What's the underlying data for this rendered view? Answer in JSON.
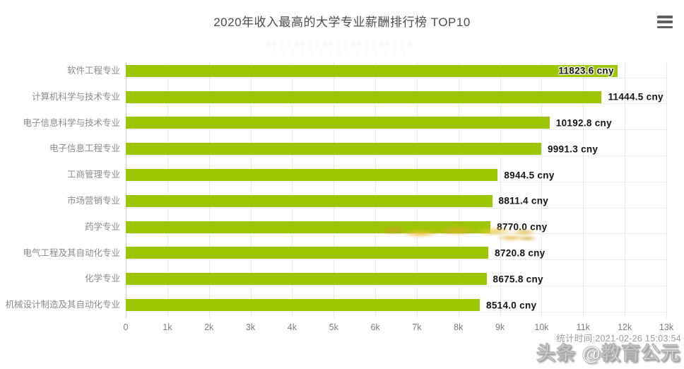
{
  "header": {
    "title": "2020年收入最高的大学专业薪酬排行榜 TOP10",
    "menu_icon": "hamburger-menu"
  },
  "chart_data": {
    "type": "bar",
    "orientation": "horizontal",
    "title": "2020年收入最高的大学专业薪酬排行榜 TOP10",
    "categories": [
      "软件工程专业",
      "计算机科学与技术专业",
      "电子信息科学与技术专业",
      "电子信息工程专业",
      "工商管理专业",
      "市场营销专业",
      "药学专业",
      "电气工程及其自动化专业",
      "化学专业",
      "机械设计制造及其自动化专业"
    ],
    "values": [
      11823.6,
      11444.5,
      10192.8,
      9991.3,
      8944.5,
      8811.4,
      8770.0,
      8720.8,
      8675.8,
      8514.0
    ],
    "value_labels": [
      "11823.6 cny",
      "11444.5 cny",
      "10192.8 cny",
      "9991.3 cny",
      "8944.5 cny",
      "8811.4 cny",
      "8770.0 cny",
      "8720.8 cny",
      "8675.8 cny",
      "8514.0 cny"
    ],
    "unit": "cny",
    "xlabel": "",
    "ylabel": "",
    "xlim": [
      0,
      13000
    ],
    "x_ticks": [
      "0",
      "1k",
      "2k",
      "3k",
      "4k",
      "5k",
      "6k",
      "7k",
      "8k",
      "9k",
      "10k",
      "11k",
      "12k",
      "13k"
    ],
    "grid": true,
    "legend_position": "none",
    "bar_color": "#9CC502",
    "label_inside_index": 0
  },
  "footer": {
    "stats_time": "统计时间:2021-02-26 15:03:54",
    "watermark": "头条 @教育公元"
  },
  "colors": {
    "bar": "#9CC502",
    "title_text": "#4c4c4c",
    "category_text": "#8b8b8b",
    "value_text": "#141414",
    "grid_line": "#e7eaed",
    "axis_line": "#c9d4e0",
    "tick_text": "#7d7d7d",
    "footer_text": "#9b9b9b",
    "watermark_fill": "#ffffff",
    "watermark_smudge": "#e7bd3d"
  }
}
